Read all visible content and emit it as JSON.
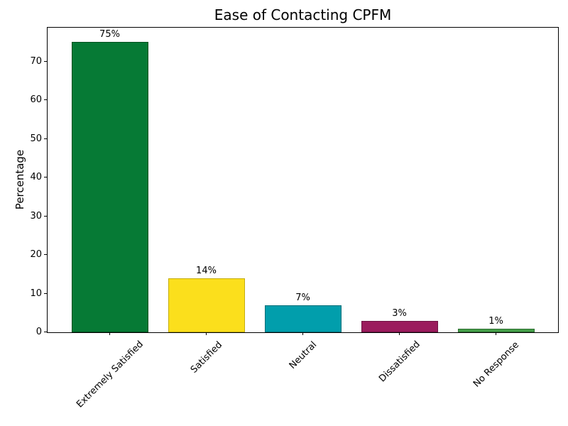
{
  "chart_data": {
    "type": "bar",
    "title": "Ease of Contacting CPFM",
    "xlabel": "",
    "ylabel": "Percentage",
    "categories": [
      "Extremely Satisfied",
      "Satisfied",
      "Neutral",
      "Dissatisfied",
      "No Response"
    ],
    "values": [
      75,
      14,
      7,
      3,
      1
    ],
    "value_labels": [
      "75%",
      "14%",
      "7%",
      "3%",
      "1%"
    ],
    "bar_colors": [
      "#067A35",
      "#FBDF1C",
      "#019EAC",
      "#9B1C5D",
      "#45A049"
    ],
    "bar_edge_colors": [
      "#04511F",
      "#C4AD0F",
      "#016E78",
      "#6C1341",
      "#2E7032"
    ],
    "ylim": [
      0,
      78.75
    ],
    "yticks": [
      0,
      10,
      20,
      30,
      40,
      50,
      60,
      70
    ],
    "ytick_labels": [
      "0",
      "10",
      "20",
      "30",
      "40",
      "50",
      "60",
      "70"
    ],
    "x_tick_rotation": 45,
    "grid": false,
    "legend": "none",
    "axis_color": "#000000",
    "text_color": "#000000",
    "background_color": "#ffffff"
  }
}
